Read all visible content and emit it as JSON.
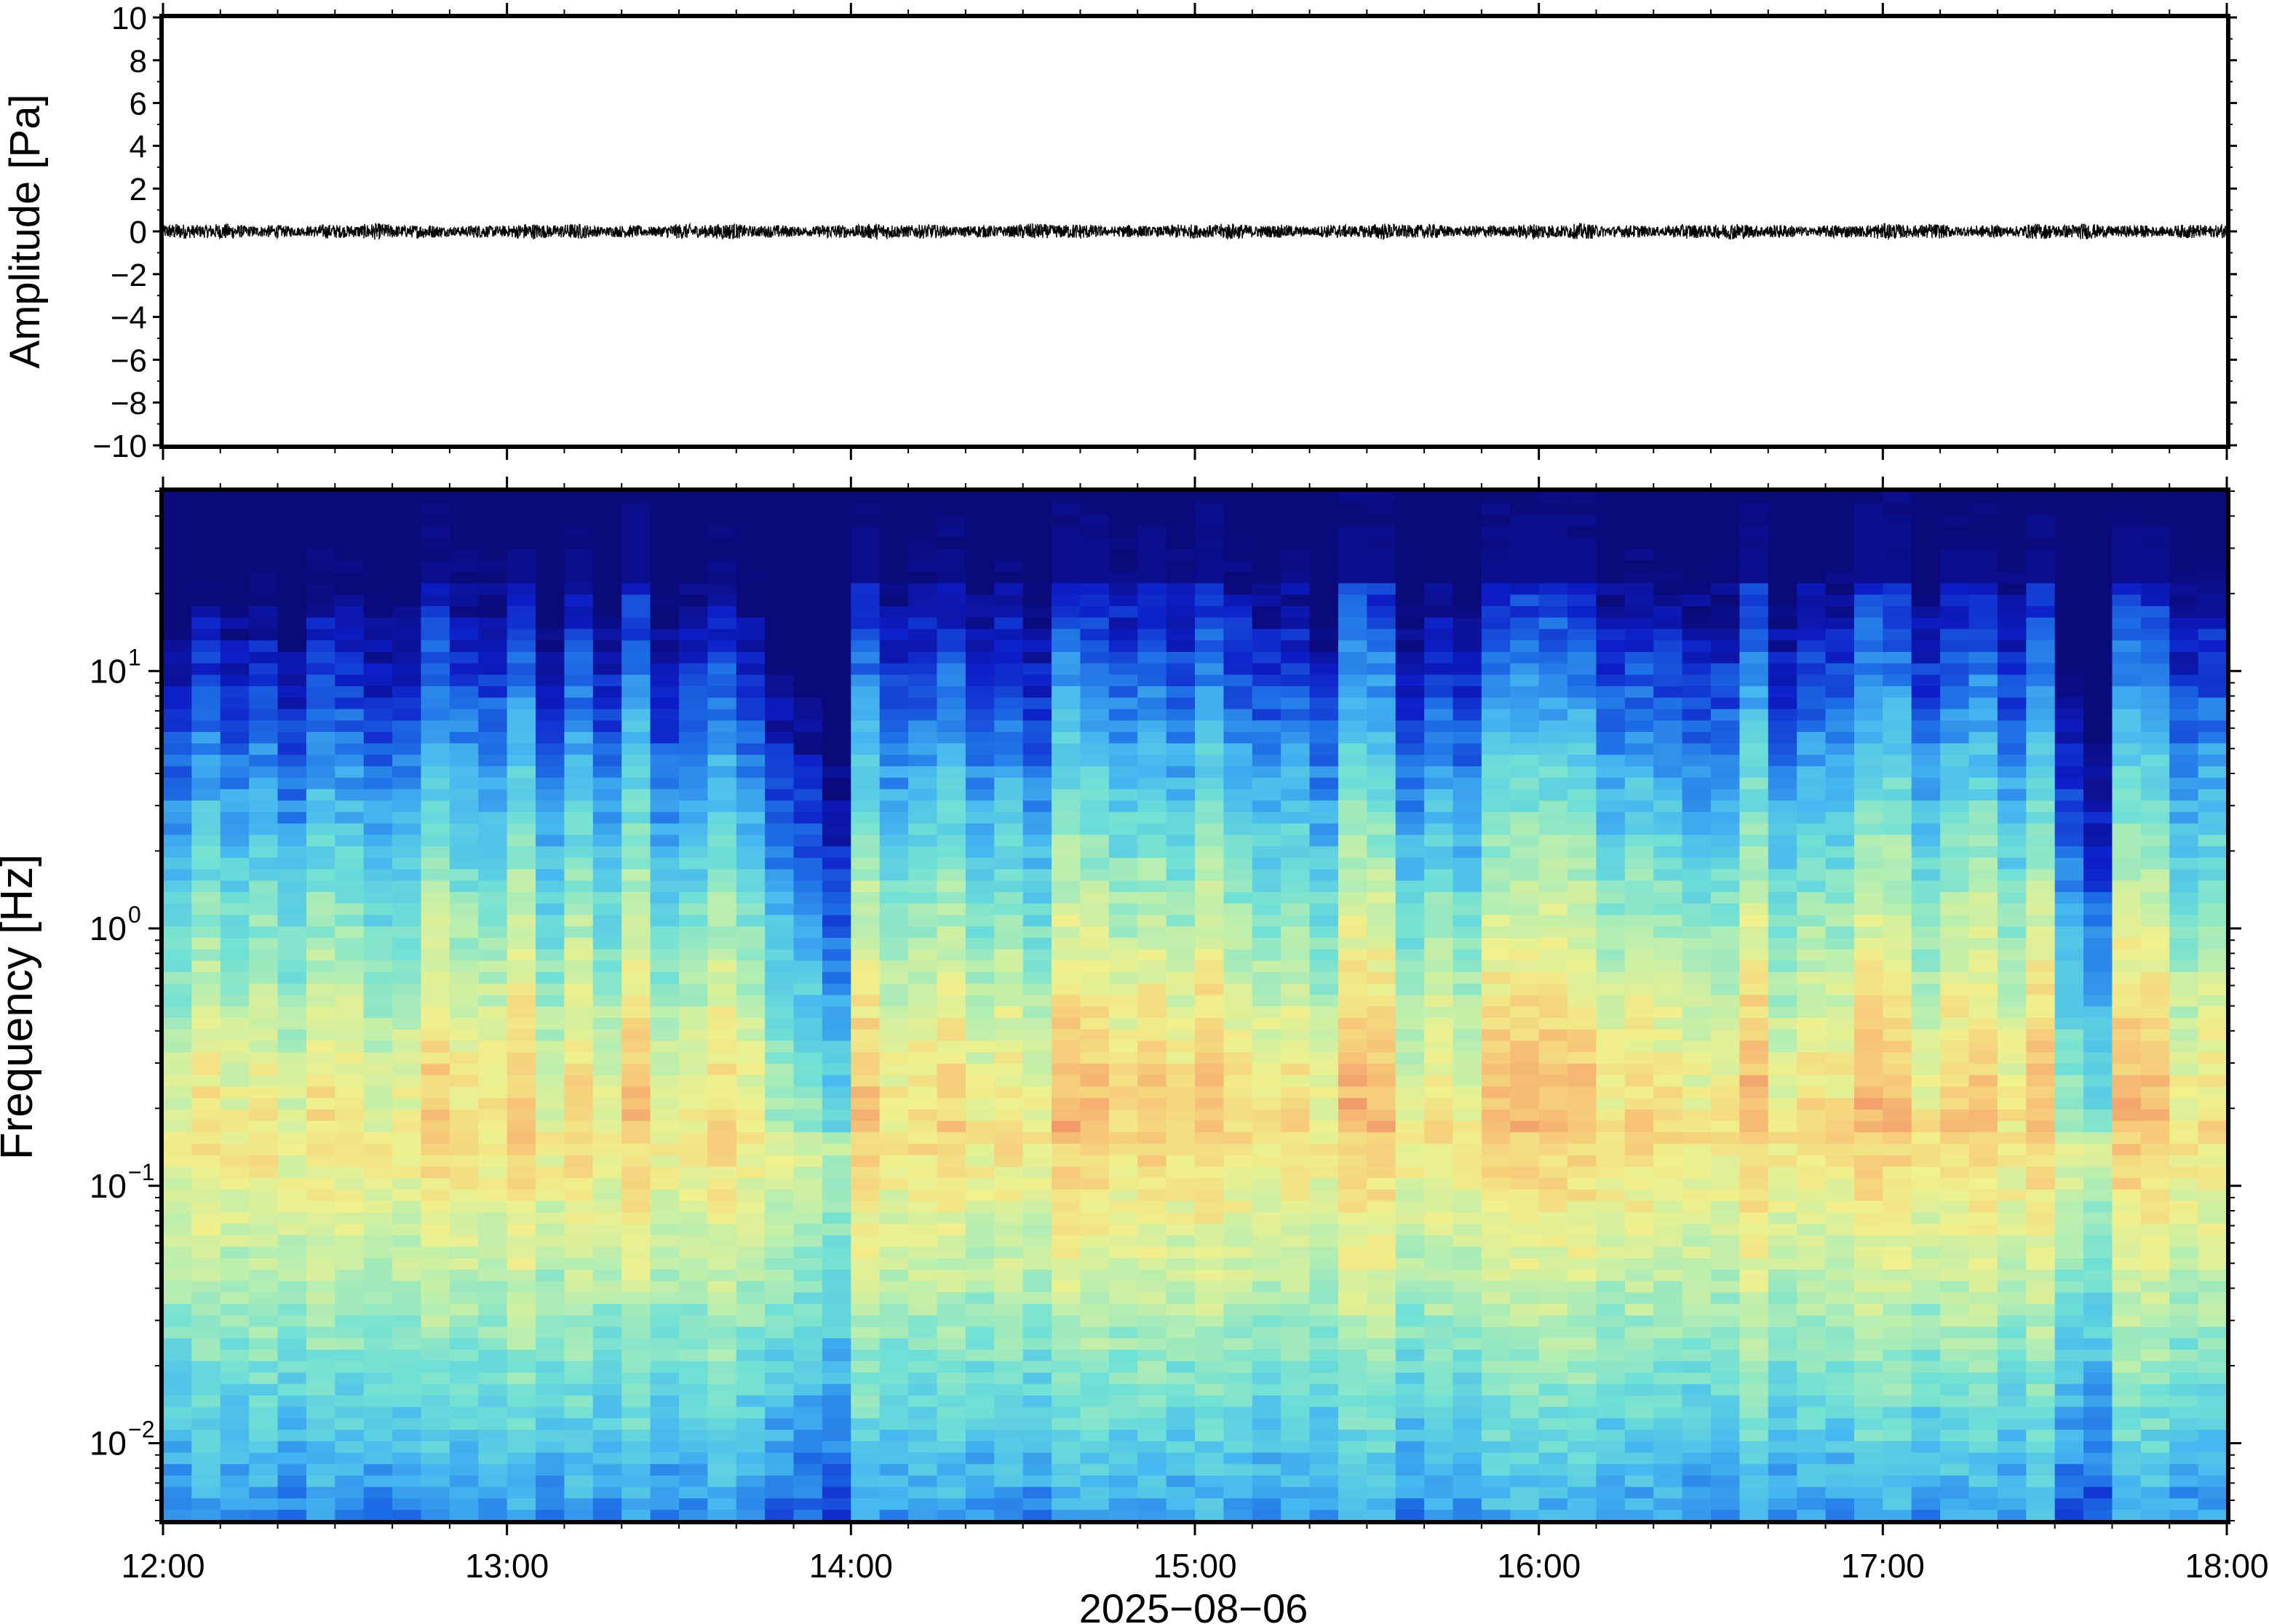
{
  "chart_data": [
    {
      "type": "line",
      "ylabel": "Amplitude [Pa]",
      "ylim": [
        -10,
        10
      ],
      "y_ticks": [
        "10",
        "8",
        "6",
        "4",
        "2",
        "0",
        "−2",
        "−4",
        "−6",
        "−8",
        "−10"
      ],
      "x_ticks": [
        "12:00",
        "13:00",
        "14:00",
        "15:00",
        "16:00",
        "17:00",
        "18:00"
      ],
      "xlim": [
        "2025-08-06 12:00",
        "2025-08-06 18:00"
      ],
      "series": [
        {
          "color": "#000000",
          "noise_envelope_pa": 0.3,
          "note_values": "waveform trace centred on 0 Pa, peak amplitude ≈ ±0.5 Pa"
        }
      ]
    },
    {
      "type": "heatmap",
      "ylabel": "Frequency [Hz]",
      "yscale": "log",
      "ylim": [
        0.005,
        50
      ],
      "y_tick_bases": [
        "10",
        "10",
        "10",
        "10"
      ],
      "y_tick_exponents": [
        "1",
        "0",
        "−1",
        "−2"
      ],
      "xlabel": "2025−08−06",
      "x_ticks": [
        "12:00",
        "13:00",
        "14:00",
        "15:00",
        "16:00",
        "17:00",
        "18:00"
      ],
      "xlim": [
        "2025-08-06 12:00",
        "2025-08-06 18:00"
      ],
      "colormap": [
        "#0b0a7a",
        "#0d1ec8",
        "#1e6fe6",
        "#46b8f0",
        "#6fe0d6",
        "#b8eeb0",
        "#f0f08c",
        "#f7c878",
        "#f09468"
      ],
      "energy_peak_hz": 0.17
    }
  ]
}
